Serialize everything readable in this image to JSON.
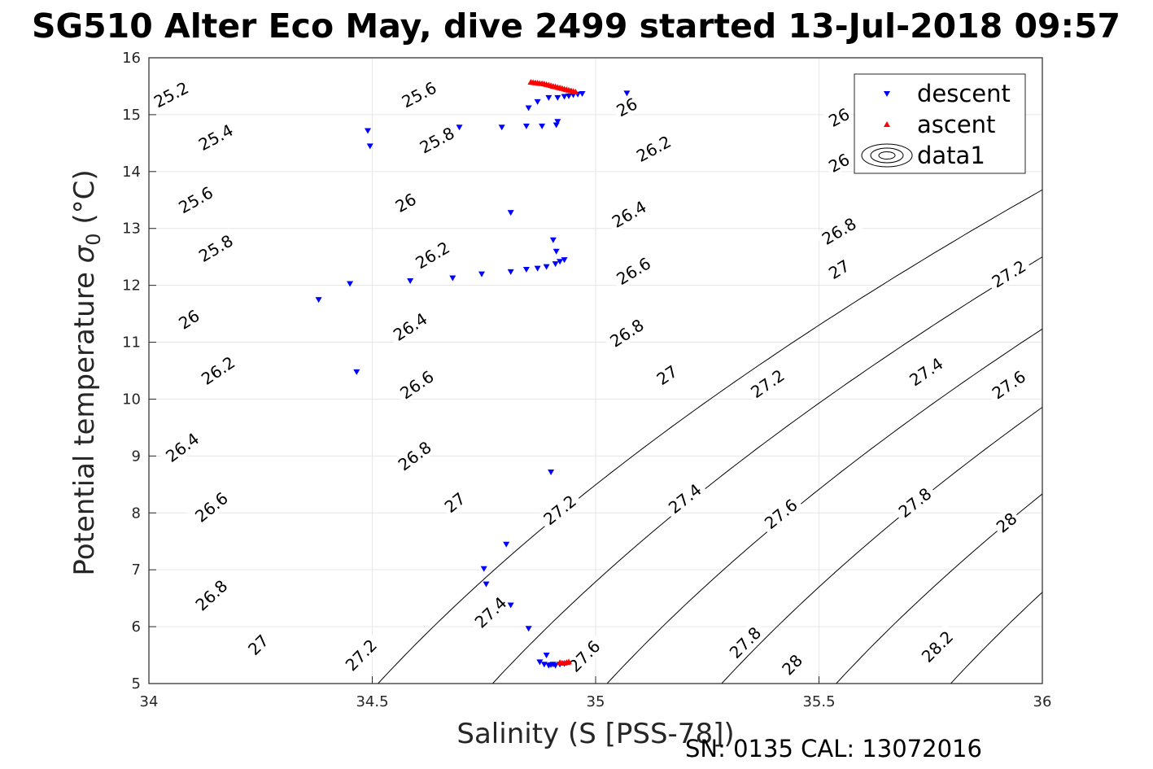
{
  "chart_data": {
    "type": "scatter",
    "title": "SG510 Alter Eco May, dive 2499 started 13-Jul-2018 09:57",
    "xlabel": "Salinity (S [PSS-78])",
    "ylabel": "Potential temperature σ 0 (°C)",
    "ylabel_main": "Potential temperature ",
    "ylabel_sigma": "σ",
    "ylabel_sub": "0",
    "ylabel_unit": " (°C)",
    "xlim": [
      34,
      36
    ],
    "ylim": [
      5,
      16
    ],
    "x_ticks": [
      34,
      34.5,
      35,
      35.5,
      36
    ],
    "x_tick_labels": [
      "34",
      "34.5",
      "35",
      "35.5",
      "36"
    ],
    "y_ticks": [
      5,
      6,
      7,
      8,
      9,
      10,
      11,
      12,
      13,
      14,
      15,
      16
    ],
    "y_tick_labels": [
      "5",
      "6",
      "7",
      "8",
      "9",
      "10",
      "11",
      "12",
      "13",
      "14",
      "15",
      "16"
    ],
    "grid": true,
    "legend_position": "top-right",
    "footer": "SN: 0135  CAL: 13072016",
    "series": [
      {
        "name": "descent",
        "marker": "triangle-down",
        "color": "#0000ff",
        "points": [
          [
            34.38,
            11.75
          ],
          [
            34.45,
            12.03
          ],
          [
            34.465,
            10.48
          ],
          [
            34.49,
            14.72
          ],
          [
            34.495,
            14.45
          ],
          [
            34.585,
            12.08
          ],
          [
            34.695,
            14.78
          ],
          [
            34.68,
            12.13
          ],
          [
            34.745,
            12.2
          ],
          [
            34.79,
            14.78
          ],
          [
            34.81,
            13.28
          ],
          [
            34.81,
            12.24
          ],
          [
            34.845,
            12.28
          ],
          [
            34.845,
            14.8
          ],
          [
            34.85,
            15.12
          ],
          [
            34.87,
            15.23
          ],
          [
            34.87,
            12.3
          ],
          [
            34.88,
            14.8
          ],
          [
            34.89,
            12.33
          ],
          [
            34.895,
            15.3
          ],
          [
            34.905,
            12.8
          ],
          [
            34.91,
            12.38
          ],
          [
            34.912,
            14.82
          ],
          [
            34.915,
            14.88
          ],
          [
            34.912,
            12.6
          ],
          [
            34.915,
            15.3
          ],
          [
            34.92,
            12.42
          ],
          [
            34.93,
            15.32
          ],
          [
            34.93,
            12.45
          ],
          [
            34.94,
            15.33
          ],
          [
            34.95,
            15.35
          ],
          [
            34.96,
            15.36
          ],
          [
            34.97,
            15.37
          ],
          [
            35.07,
            15.38
          ],
          [
            34.9,
            8.72
          ],
          [
            34.8,
            7.45
          ],
          [
            34.75,
            7.02
          ],
          [
            34.755,
            6.75
          ],
          [
            34.81,
            6.38
          ],
          [
            34.85,
            5.97
          ],
          [
            34.89,
            5.5
          ],
          [
            34.875,
            5.38
          ],
          [
            34.885,
            5.34
          ],
          [
            34.895,
            5.32
          ],
          [
            34.9,
            5.33
          ],
          [
            34.905,
            5.34
          ],
          [
            34.91,
            5.32
          ],
          [
            34.92,
            5.34
          ],
          [
            34.93,
            5.35
          ]
        ]
      },
      {
        "name": "ascent",
        "marker": "triangle-up",
        "color": "#ff0000",
        "points": [
          [
            34.855,
            15.57
          ],
          [
            34.86,
            15.565
          ],
          [
            34.865,
            15.56
          ],
          [
            34.87,
            15.555
          ],
          [
            34.875,
            15.55
          ],
          [
            34.88,
            15.545
          ],
          [
            34.885,
            15.54
          ],
          [
            34.89,
            15.53
          ],
          [
            34.895,
            15.52
          ],
          [
            34.9,
            15.51
          ],
          [
            34.905,
            15.5
          ],
          [
            34.91,
            15.49
          ],
          [
            34.915,
            15.48
          ],
          [
            34.92,
            15.47
          ],
          [
            34.925,
            15.46
          ],
          [
            34.93,
            15.45
          ],
          [
            34.935,
            15.44
          ],
          [
            34.94,
            15.43
          ],
          [
            34.945,
            15.42
          ],
          [
            34.95,
            15.41
          ],
          [
            34.955,
            15.4
          ],
          [
            34.92,
            5.37
          ],
          [
            34.925,
            5.36
          ],
          [
            34.93,
            5.36
          ],
          [
            34.935,
            5.37
          ],
          [
            34.94,
            5.38
          ]
        ]
      },
      {
        "name": "data1",
        "marker": "contour",
        "color": "#000000"
      }
    ],
    "contour_levels": [
      25.2,
      25.4,
      25.6,
      25.8,
      26,
      26.2,
      26.4,
      26.6,
      26.8,
      27,
      27.2,
      27.4,
      27.6,
      27.8,
      28,
      28.2
    ],
    "contour_labels": [
      {
        "text": "25.2",
        "s": 34.05,
        "t": 15.35
      },
      {
        "text": "25.6",
        "s": 34.605,
        "t": 15.35
      },
      {
        "text": "26",
        "s": 35.07,
        "t": 15.13
      },
      {
        "text": "25.4",
        "s": 34.15,
        "t": 14.6
      },
      {
        "text": "25.8",
        "s": 34.645,
        "t": 14.55
      },
      {
        "text": "26.2",
        "s": 35.13,
        "t": 14.4
      },
      {
        "text": "25.6",
        "s": 34.105,
        "t": 13.5
      },
      {
        "text": "26",
        "s": 34.575,
        "t": 13.45
      },
      {
        "text": "26.4",
        "s": 35.075,
        "t": 13.25
      },
      {
        "text": "26.8",
        "s": 35.545,
        "t": 12.95
      },
      {
        "text": "25.8",
        "s": 34.15,
        "t": 12.65
      },
      {
        "text": "26.2",
        "s": 34.635,
        "t": 12.53
      },
      {
        "text": "26.6",
        "s": 35.085,
        "t": 12.25
      },
      {
        "text": "27",
        "s": 35.545,
        "t": 12.28
      },
      {
        "text": "27.2",
        "s": 35.925,
        "t": 12.2
      },
      {
        "text": "26",
        "s": 34.09,
        "t": 11.4
      },
      {
        "text": "26.4",
        "s": 34.585,
        "t": 11.27
      },
      {
        "text": "26.8",
        "s": 35.07,
        "t": 11.16
      },
      {
        "text": "26.2",
        "s": 34.155,
        "t": 10.5
      },
      {
        "text": "26.6",
        "s": 34.6,
        "t": 10.25
      },
      {
        "text": "27",
        "s": 35.16,
        "t": 10.42
      },
      {
        "text": "27.2",
        "s": 35.385,
        "t": 10.27
      },
      {
        "text": "27.4",
        "s": 35.74,
        "t": 10.48
      },
      {
        "text": "27.6",
        "s": 35.925,
        "t": 10.25
      },
      {
        "text": "26.4",
        "s": 34.075,
        "t": 9.15
      },
      {
        "text": "26.8",
        "s": 34.595,
        "t": 9.0
      },
      {
        "text": "26.6",
        "s": 34.14,
        "t": 8.1
      },
      {
        "text": "27",
        "s": 34.685,
        "t": 8.18
      },
      {
        "text": "27.2",
        "s": 34.92,
        "t": 8.05
      },
      {
        "text": "27.4",
        "s": 35.2,
        "t": 8.25
      },
      {
        "text": "27.6",
        "s": 35.415,
        "t": 7.98
      },
      {
        "text": "27.8",
        "s": 35.715,
        "t": 8.18
      },
      {
        "text": "28",
        "s": 35.92,
        "t": 7.83
      },
      {
        "text": "26.8",
        "s": 34.14,
        "t": 6.55
      },
      {
        "text": "27.4",
        "s": 34.765,
        "t": 6.25
      },
      {
        "text": "27",
        "s": 34.245,
        "t": 5.68
      },
      {
        "text": "27.2",
        "s": 34.475,
        "t": 5.5
      },
      {
        "text": "27.6",
        "s": 34.975,
        "t": 5.48
      },
      {
        "text": "27.8",
        "s": 35.335,
        "t": 5.72
      },
      {
        "text": "28",
        "s": 35.44,
        "t": 5.33
      },
      {
        "text": "28.2",
        "s": 35.765,
        "t": 5.65
      },
      {
        "text": "26",
        "s": 35.545,
        "t": 14.95
      },
      {
        "text": "26",
        "s": 35.545,
        "t": 14.15
      }
    ]
  }
}
